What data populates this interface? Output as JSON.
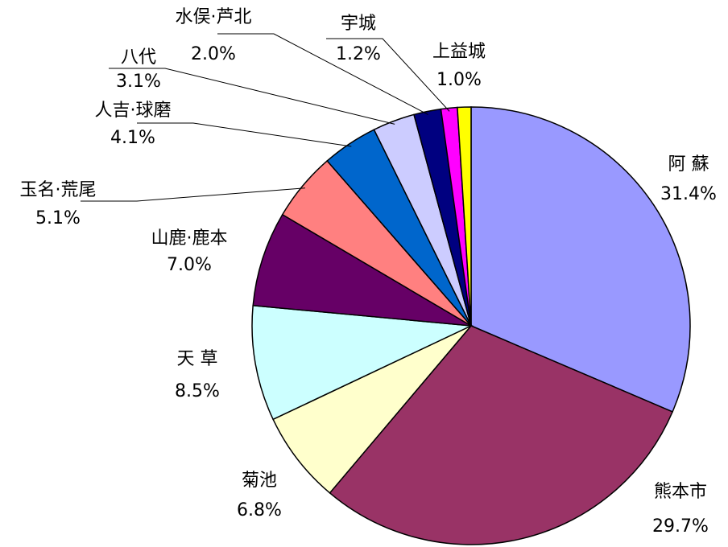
{
  "chart_data": {
    "type": "pie",
    "categories": [
      "阿 蘇",
      "熊本市",
      "菊池",
      "天 草",
      "山鹿·鹿本",
      "玉名·荒尾",
      "人吉·球磨",
      "八代",
      "水俣·芦北",
      "宇城",
      "上益城"
    ],
    "values": [
      31.4,
      29.7,
      6.8,
      8.5,
      7.0,
      5.1,
      4.1,
      3.1,
      2.0,
      1.2,
      1.0
    ],
    "value_labels": [
      "31.4%",
      "29.7%",
      "6.8%",
      "8.5%",
      "7.0%",
      "5.1%",
      "4.1%",
      "3.1%",
      "2.0%",
      "1.2%",
      "1.0%"
    ],
    "colors": [
      "#9999ff",
      "#993366",
      "#ffffcc",
      "#ccffff",
      "#660066",
      "#ff8080",
      "#0066cc",
      "#ccccff",
      "#000080",
      "#ff00ff",
      "#ffff00"
    ]
  }
}
